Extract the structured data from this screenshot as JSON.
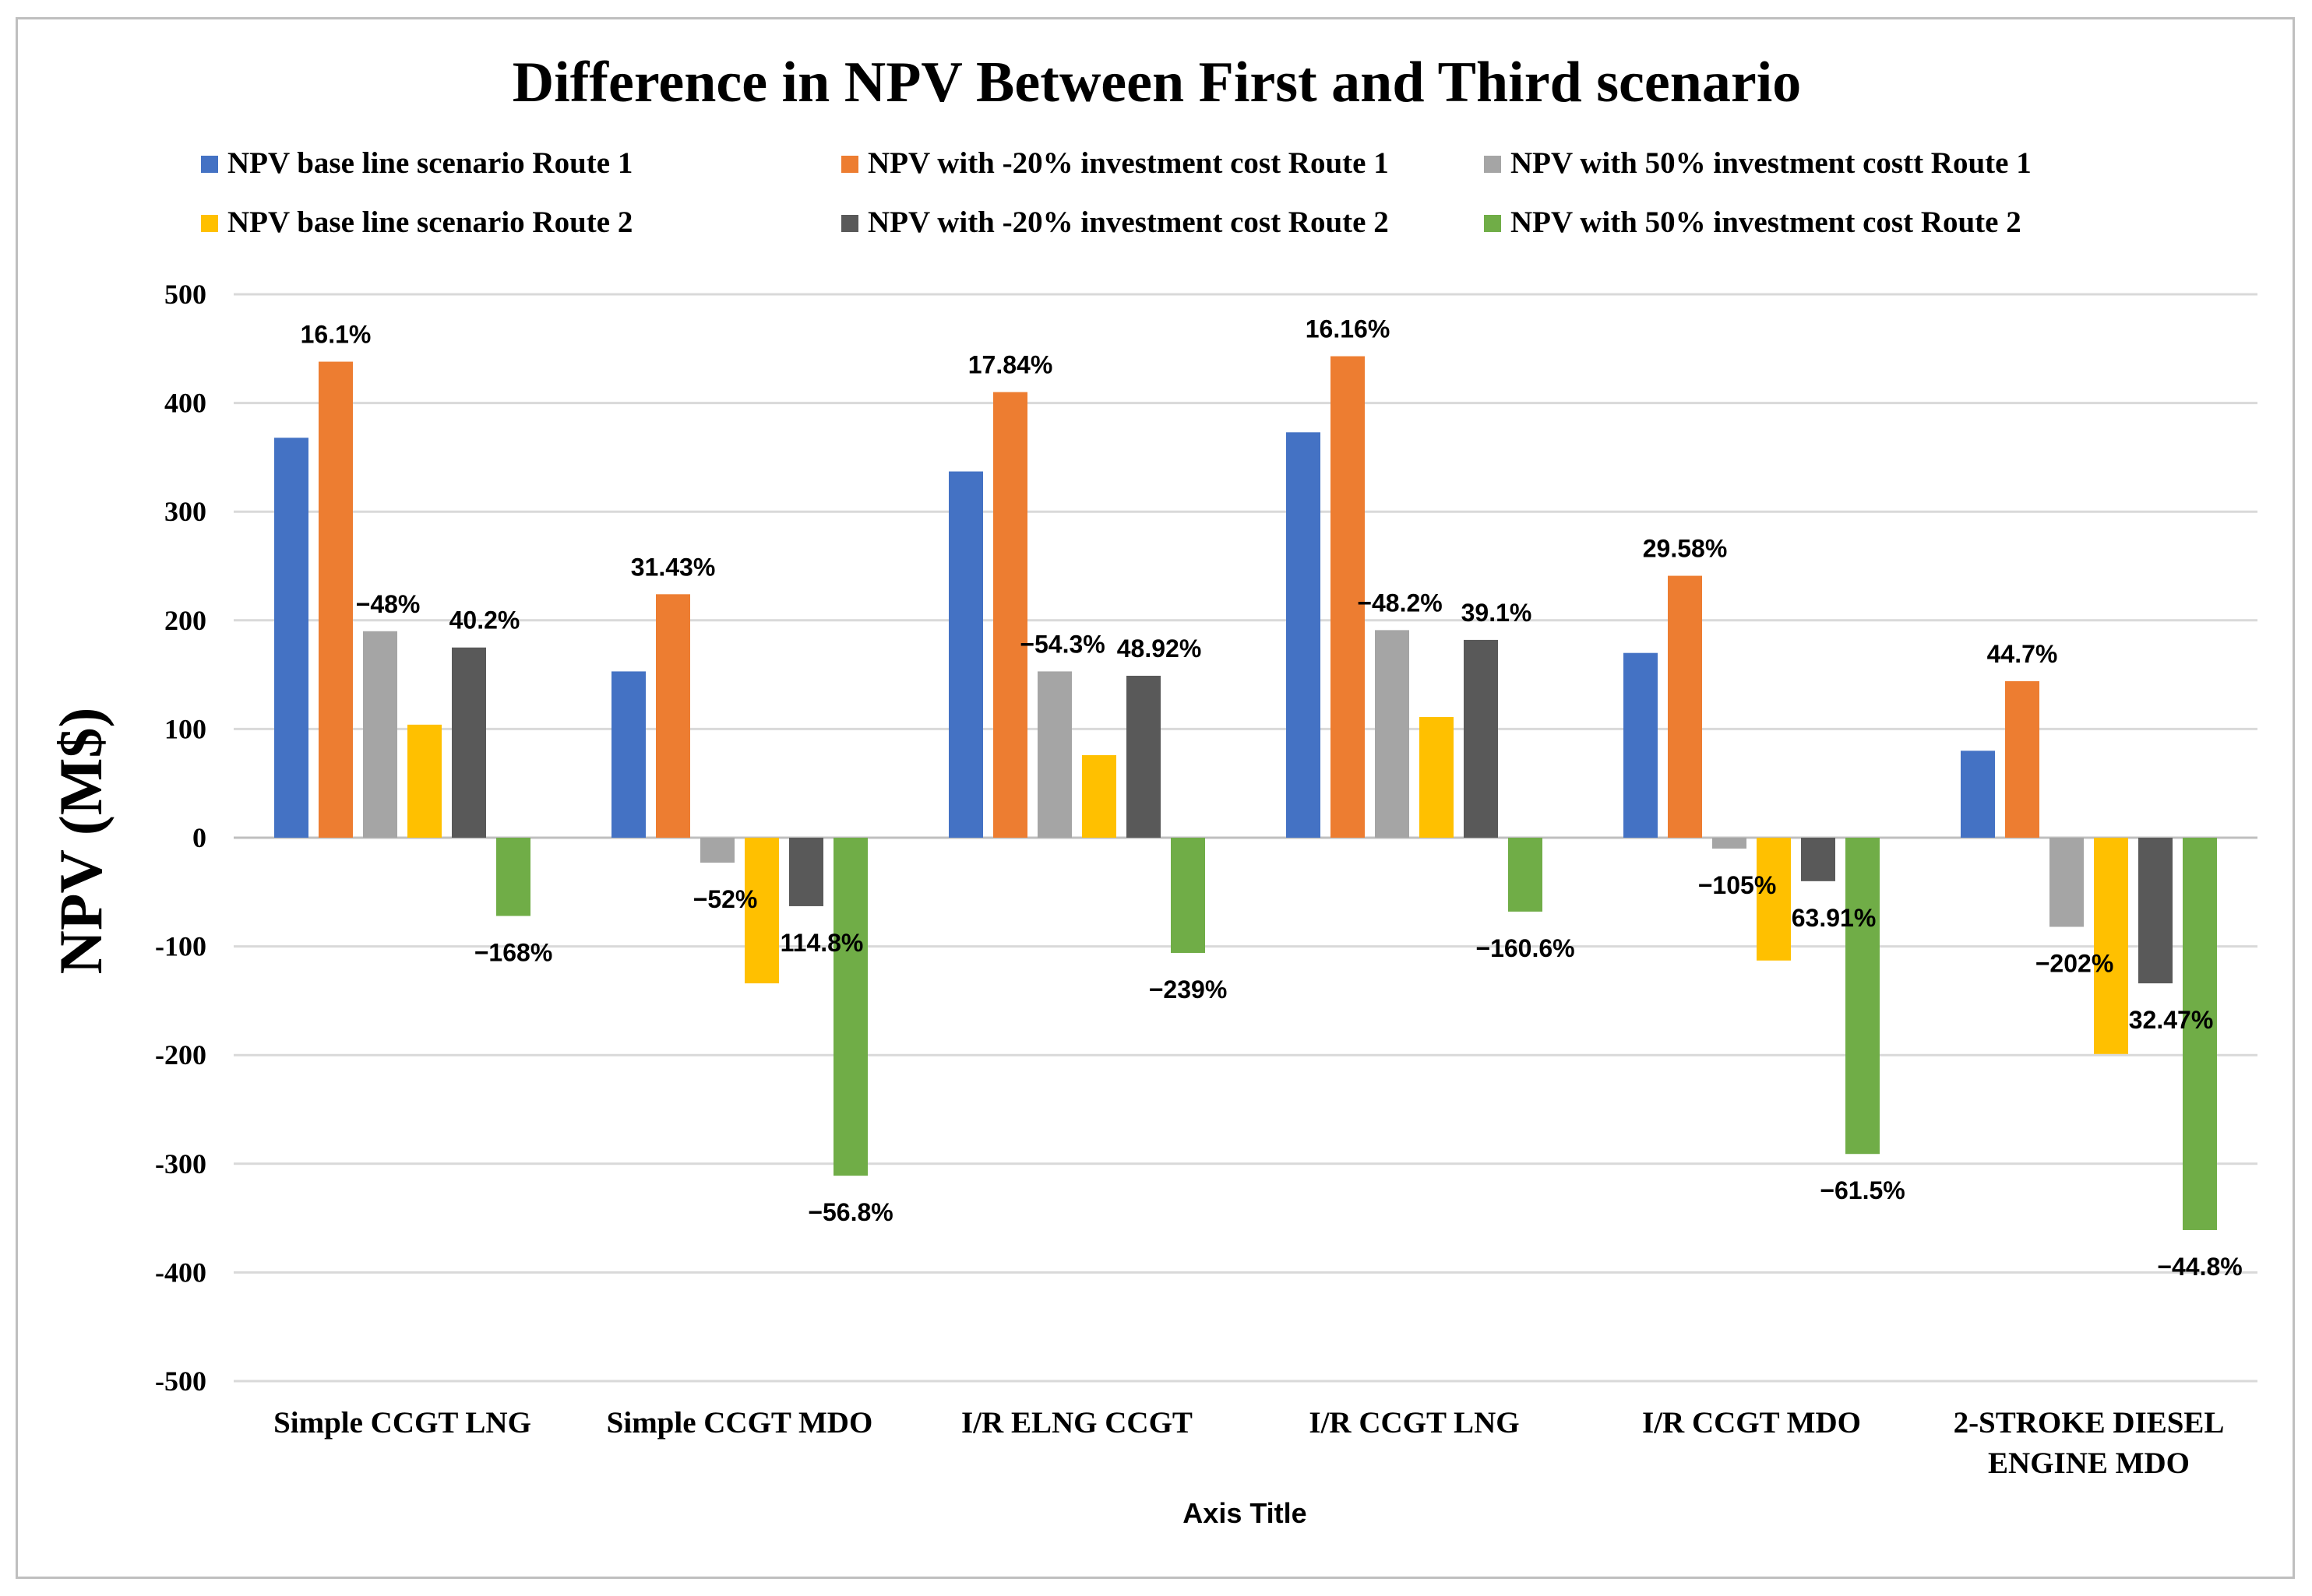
{
  "chart_data": {
    "type": "bar",
    "title": "Difference in NPV Between First and Third scenario",
    "xlabel": "Axis Title",
    "ylabel": "NPV (M$)",
    "ylim": [
      -500,
      500
    ],
    "yticks": [
      500,
      400,
      300,
      200,
      100,
      0,
      -100,
      -200,
      -300,
      -400,
      -500
    ],
    "grid": true,
    "legend_position": "top",
    "categories": [
      [
        "Simple CCGT LNG"
      ],
      [
        "Simple CCGT MDO"
      ],
      [
        "I/R ELNG CCGT"
      ],
      [
        "I/R CCGT LNG"
      ],
      [
        "I/R CCGT MDO"
      ],
      [
        "2-STROKE DIESEL",
        "ENGINE MDO"
      ]
    ],
    "series": [
      {
        "name": "NPV base line scenario Route 1",
        "color": "#4472c4",
        "values": [
          368,
          153,
          337,
          373,
          170,
          80
        ],
        "labels": [
          "",
          "",
          "",
          "",
          "",
          ""
        ]
      },
      {
        "name": "NPV with -20%  investment cost Route 1",
        "color": "#ed7d31",
        "values": [
          438,
          224,
          410,
          443,
          241,
          144
        ],
        "labels": [
          "16.1%",
          "31.43%",
          "17.84%",
          "16.16%",
          "29.58%",
          "44.7%"
        ]
      },
      {
        "name": "NPV with 50%  investment costt Route 1",
        "color": "#a5a5a5",
        "values": [
          190,
          -23,
          153,
          191,
          -10,
          -82
        ],
        "labels": [
          "−48%",
          "−52%",
          "−54.3%",
          "−48.2%",
          "−105%",
          "−202%"
        ]
      },
      {
        "name": "NPV base line scenario Route 2",
        "color": "#ffc000",
        "values": [
          104,
          -134,
          76,
          111,
          -113,
          -199
        ],
        "labels": [
          "",
          "",
          "",
          "",
          "",
          ""
        ]
      },
      {
        "name": "NPV with -20%  investment cost Route 2",
        "color": "#595959",
        "values": [
          175,
          -63,
          149,
          182,
          -40,
          -134
        ],
        "labels": [
          "40.2%",
          "114.8%",
          "48.92%",
          "39.1%",
          "63.91%",
          "32.47%"
        ]
      },
      {
        "name": "NPV with 50%  investment cost Route 2",
        "color": "#70ad47",
        "values": [
          -72,
          -311,
          -106,
          -68,
          -291,
          -361
        ],
        "labels": [
          "−168%",
          "−56.8%",
          "−239%",
          "−160.6%",
          "−61.5%",
          "−44.8%"
        ]
      }
    ]
  }
}
